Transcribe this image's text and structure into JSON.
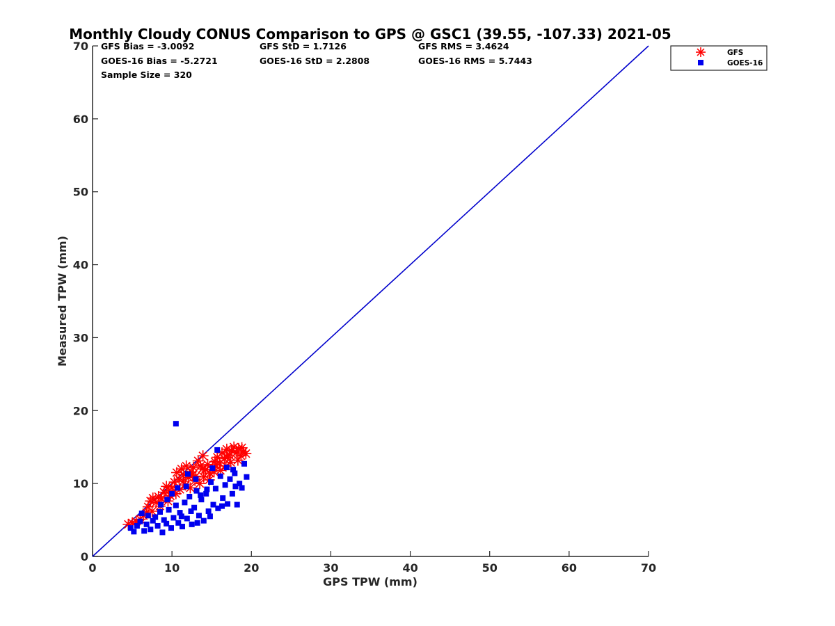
{
  "chart_data": {
    "type": "scatter",
    "title": "Monthly Cloudy CONUS Comparison to GPS @ GSC1 (39.55, -107.33) 2021-05",
    "xlabel": "GPS TPW (mm)",
    "ylabel": "Measured TPW (mm)",
    "xlim": [
      0,
      70
    ],
    "ylim": [
      0,
      70
    ],
    "xticks": [
      "0",
      "10",
      "20",
      "30",
      "40",
      "50",
      "60",
      "70"
    ],
    "yticks": [
      "0",
      "10",
      "20",
      "30",
      "40",
      "50",
      "60",
      "70"
    ],
    "grid": false,
    "legend_position": "top-right",
    "stats": [
      [
        "GFS Bias = -3.0092",
        "GFS StD = 1.7126",
        "GFS RMS = 3.4624"
      ],
      [
        "GOES-16 Bias = -5.2721",
        "GOES-16 StD = 2.2808",
        "GOES-16 RMS = 5.7443"
      ],
      [
        "Sample Size = 320",
        "",
        ""
      ]
    ],
    "reference_line": {
      "x": [
        0,
        70
      ],
      "y": [
        0,
        70
      ],
      "color": "#0000cc"
    },
    "series": [
      {
        "name": "GFS",
        "marker": "asterisk",
        "color": "#ff0000",
        "points": [
          [
            4.5,
            4.4
          ],
          [
            5.0,
            4.6
          ],
          [
            5.5,
            4.8
          ],
          [
            6.0,
            5.1
          ],
          [
            6.4,
            5.6
          ],
          [
            6.8,
            6.0
          ],
          [
            7.0,
            6.8
          ],
          [
            7.3,
            7.6
          ],
          [
            7.6,
            8.0
          ],
          [
            8.0,
            7.4
          ],
          [
            8.3,
            8.2
          ],
          [
            8.7,
            7.9
          ],
          [
            9.0,
            8.8
          ],
          [
            9.3,
            9.6
          ],
          [
            9.6,
            9.0
          ],
          [
            10.0,
            9.4
          ],
          [
            10.3,
            10.2
          ],
          [
            10.6,
            11.5
          ],
          [
            10.9,
            10.6
          ],
          [
            11.2,
            12.0
          ],
          [
            11.5,
            11.2
          ],
          [
            11.8,
            12.4
          ],
          [
            12.1,
            10.8
          ],
          [
            12.4,
            11.6
          ],
          [
            12.7,
            12.2
          ],
          [
            13.0,
            11.0
          ],
          [
            13.3,
            13.1
          ],
          [
            13.6,
            12.4
          ],
          [
            13.9,
            13.8
          ],
          [
            14.2,
            11.9
          ],
          [
            14.5,
            12.6
          ],
          [
            14.8,
            11.4
          ],
          [
            15.1,
            12.2
          ],
          [
            15.4,
            13.0
          ],
          [
            15.7,
            13.6
          ],
          [
            16.0,
            12.8
          ],
          [
            16.3,
            14.2
          ],
          [
            16.6,
            13.4
          ],
          [
            16.9,
            14.7
          ],
          [
            17.2,
            13.9
          ],
          [
            17.5,
            14.5
          ],
          [
            17.8,
            15.0
          ],
          [
            18.1,
            14.2
          ],
          [
            18.4,
            14.8
          ],
          [
            18.7,
            13.8
          ],
          [
            19.0,
            14.4
          ],
          [
            19.3,
            14.1
          ],
          [
            8.5,
            6.9
          ],
          [
            9.5,
            7.6
          ],
          [
            10.5,
            8.6
          ],
          [
            11.0,
            9.2
          ],
          [
            11.7,
            9.8
          ],
          [
            12.3,
            9.4
          ],
          [
            12.9,
            10.4
          ],
          [
            13.5,
            10.0
          ],
          [
            14.0,
            10.9
          ],
          [
            14.7,
            10.5
          ],
          [
            15.3,
            11.6
          ],
          [
            16.1,
            11.8
          ],
          [
            16.8,
            12.4
          ],
          [
            17.4,
            12.9
          ],
          [
            18.3,
            13.2
          ],
          [
            7.5,
            6.2
          ],
          [
            9.8,
            8.3
          ],
          [
            11.4,
            10.3
          ],
          [
            12.6,
            11.2
          ],
          [
            13.8,
            12.0
          ],
          [
            15.5,
            12.6
          ],
          [
            17.0,
            13.6
          ],
          [
            18.8,
            14.9
          ]
        ]
      },
      {
        "name": "GOES-16",
        "marker": "square",
        "color": "#0000ee",
        "points": [
          [
            4.8,
            3.9
          ],
          [
            5.2,
            3.4
          ],
          [
            5.6,
            4.2
          ],
          [
            6.0,
            4.8
          ],
          [
            6.2,
            5.9
          ],
          [
            6.5,
            3.5
          ],
          [
            6.8,
            4.4
          ],
          [
            7.0,
            5.6
          ],
          [
            7.3,
            3.7
          ],
          [
            7.6,
            4.9
          ],
          [
            7.9,
            5.4
          ],
          [
            8.2,
            4.2
          ],
          [
            8.5,
            6.1
          ],
          [
            8.8,
            3.3
          ],
          [
            9.0,
            5.0
          ],
          [
            9.3,
            4.5
          ],
          [
            9.6,
            6.4
          ],
          [
            9.9,
            3.9
          ],
          [
            10.2,
            5.3
          ],
          [
            10.5,
            7.0
          ],
          [
            10.5,
            18.2
          ],
          [
            10.8,
            4.6
          ],
          [
            11.0,
            6.0
          ],
          [
            11.3,
            4.1
          ],
          [
            11.6,
            7.4
          ],
          [
            11.9,
            5.2
          ],
          [
            12.2,
            8.2
          ],
          [
            12.5,
            4.4
          ],
          [
            12.8,
            6.7
          ],
          [
            13.1,
            9.0
          ],
          [
            13.4,
            5.6
          ],
          [
            13.7,
            7.8
          ],
          [
            14.0,
            4.9
          ],
          [
            14.3,
            8.6
          ],
          [
            14.6,
            6.2
          ],
          [
            14.9,
            10.2
          ],
          [
            15.2,
            7.1
          ],
          [
            15.5,
            9.3
          ],
          [
            15.8,
            6.6
          ],
          [
            16.1,
            11.0
          ],
          [
            16.4,
            8.0
          ],
          [
            16.7,
            9.8
          ],
          [
            17.0,
            7.2
          ],
          [
            17.3,
            10.6
          ],
          [
            17.6,
            8.6
          ],
          [
            17.9,
            11.4
          ],
          [
            18.2,
            7.1
          ],
          [
            18.5,
            10.0
          ],
          [
            18.8,
            9.4
          ],
          [
            19.1,
            12.7
          ],
          [
            19.4,
            10.9
          ],
          [
            15.7,
            14.6
          ],
          [
            12.0,
            11.3
          ],
          [
            10.0,
            8.6
          ],
          [
            8.6,
            7.1
          ],
          [
            9.4,
            7.8
          ],
          [
            10.7,
            9.4
          ],
          [
            11.8,
            9.6
          ],
          [
            13.0,
            10.6
          ],
          [
            14.4,
            9.2
          ],
          [
            15.1,
            12.1
          ],
          [
            16.9,
            12.2
          ],
          [
            17.7,
            11.9
          ],
          [
            18.0,
            9.6
          ],
          [
            13.6,
            8.4
          ],
          [
            12.4,
            6.2
          ],
          [
            11.2,
            5.5
          ],
          [
            14.8,
            5.5
          ],
          [
            16.3,
            6.9
          ],
          [
            13.2,
            4.6
          ]
        ]
      }
    ]
  }
}
